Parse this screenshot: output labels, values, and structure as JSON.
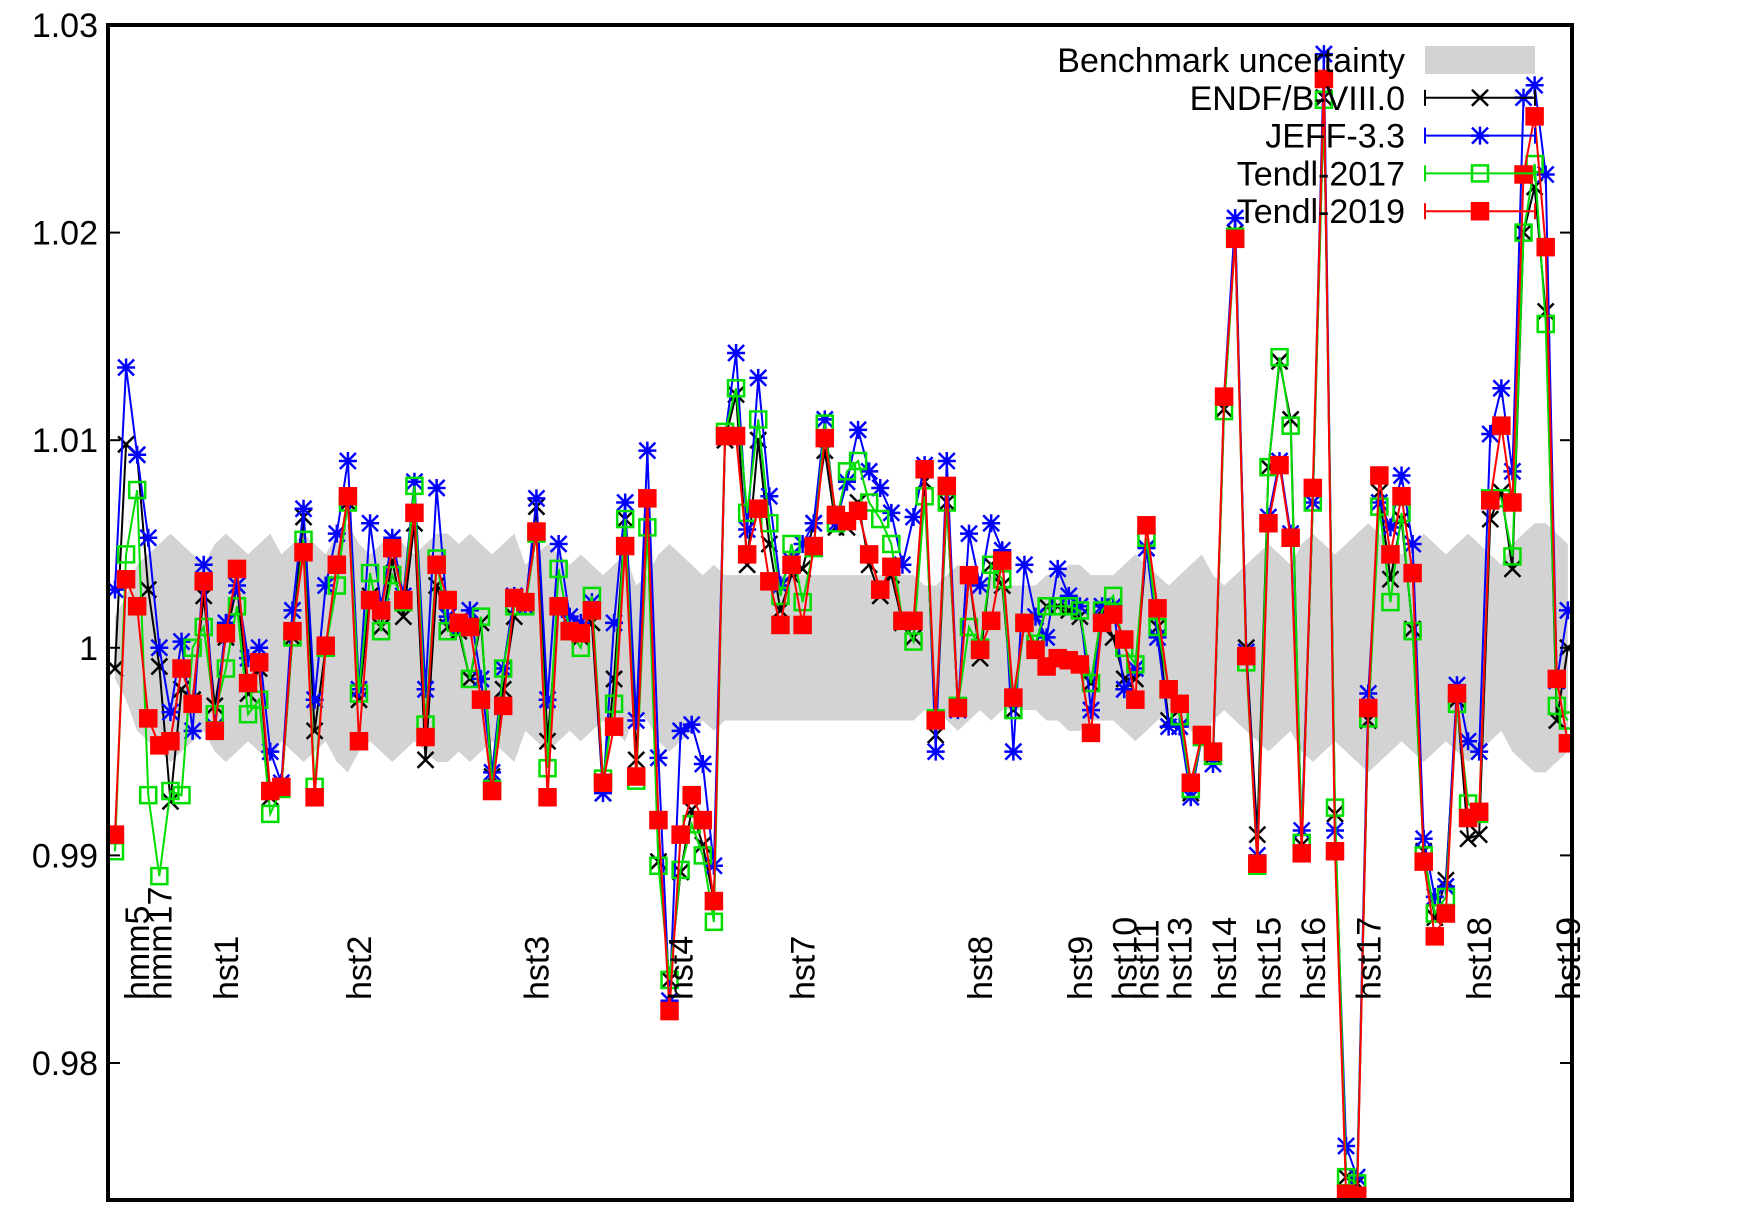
{
  "chart_data": {
    "type": "line",
    "ylim": [
      0.9734,
      1.03
    ],
    "yticks": [
      0.98,
      0.99,
      1,
      1.01,
      1.02,
      1.03
    ],
    "legend": "top-right",
    "categories": [
      null,
      null,
      "hmm5",
      null,
      "hmm17",
      null,
      null,
      null,
      null,
      null,
      "hst1",
      null,
      null,
      null,
      null,
      null,
      null,
      null,
      null,
      null,
      null,
      null,
      "hst2",
      null,
      null,
      null,
      null,
      null,
      null,
      null,
      null,
      null,
      null,
      null,
      null,
      null,
      null,
      null,
      "hst3",
      null,
      null,
      null,
      null,
      null,
      null,
      null,
      null,
      null,
      null,
      null,
      null,
      "hst4",
      null,
      null,
      null,
      null,
      null,
      null,
      null,
      null,
      null,
      null,
      "hst7",
      null,
      null,
      null,
      null,
      null,
      null,
      null,
      null,
      null,
      null,
      null,
      null,
      null,
      null,
      null,
      "hst8",
      null,
      null,
      null,
      null,
      null,
      null,
      null,
      null,
      "hst9",
      null,
      null,
      null,
      "hst10",
      null,
      "hst11",
      null,
      null,
      "hst13",
      null,
      null,
      null,
      "hst14",
      null,
      null,
      null,
      "hst15",
      null,
      null,
      null,
      "hst16",
      null,
      null,
      null,
      null,
      "hst17",
      null,
      null,
      null,
      null,
      null,
      null,
      null,
      null,
      null,
      "hst18",
      null,
      null,
      null,
      null,
      null,
      null,
      null,
      "hst19"
    ],
    "band": {
      "name": "Benchmark uncertainty",
      "color": "#d3d3d3",
      "lower": [
        0.9985,
        0.9975,
        0.996,
        0.9955,
        0.995,
        0.9945,
        0.995,
        0.9955,
        0.996,
        0.995,
        0.9945,
        0.995,
        0.9955,
        0.995,
        0.9945,
        0.9955,
        0.995,
        0.9945,
        0.995,
        0.9955,
        0.9945,
        0.994,
        0.995,
        0.9955,
        0.995,
        0.9945,
        0.995,
        0.9955,
        0.995,
        0.9945,
        0.9945,
        0.995,
        0.9945,
        0.995,
        0.9955,
        0.995,
        0.9945,
        0.996,
        0.9955,
        0.995,
        0.9955,
        0.996,
        0.9955,
        0.996,
        0.9965,
        0.996,
        0.9955,
        0.997,
        0.9965,
        0.9955,
        0.995,
        0.9955,
        0.996,
        0.9965,
        0.996,
        0.9965,
        0.9965,
        0.9965,
        0.9965,
        0.9965,
        0.9965,
        0.9965,
        0.9965,
        0.9965,
        0.9965,
        0.9965,
        0.9965,
        0.9965,
        0.9965,
        0.9965,
        0.9965,
        0.9965,
        0.9965,
        0.997,
        0.997,
        0.9965,
        0.996,
        0.9965,
        0.997,
        0.9965,
        0.997,
        0.997,
        0.997,
        0.997,
        0.9965,
        0.9965,
        0.996,
        0.996,
        0.9965,
        0.9965,
        0.9965,
        0.996,
        0.9955,
        0.996,
        0.9965,
        0.997,
        0.9965,
        0.996,
        0.9955,
        0.9965,
        0.997,
        0.9965,
        0.996,
        0.9955,
        0.995,
        0.9955,
        0.996,
        0.995,
        0.9945,
        0.995,
        0.9955,
        0.995,
        0.9945,
        0.994,
        0.9945,
        0.995,
        0.9955,
        0.995,
        0.9945,
        0.995,
        0.9955,
        0.995,
        0.9945,
        0.995,
        0.9955,
        0.996,
        0.995,
        0.9945,
        0.994,
        0.994,
        0.9945,
        0.995
      ],
      "upper": [
        1.0015,
        1.0025,
        1.004,
        1.0045,
        1.005,
        1.0055,
        1.005,
        1.0045,
        1.004,
        1.005,
        1.0055,
        1.005,
        1.0045,
        1.005,
        1.0055,
        1.0045,
        1.005,
        1.0055,
        1.005,
        1.0045,
        1.0055,
        1.006,
        1.005,
        1.0045,
        1.005,
        1.0055,
        1.005,
        1.0045,
        1.005,
        1.0055,
        1.0055,
        1.005,
        1.0055,
        1.005,
        1.0045,
        1.005,
        1.0055,
        1.004,
        1.0045,
        1.005,
        1.0045,
        1.004,
        1.0045,
        1.004,
        1.0035,
        1.004,
        1.0045,
        1.003,
        1.0035,
        1.0045,
        1.005,
        1.0045,
        1.004,
        1.0035,
        1.004,
        1.0035,
        1.0035,
        1.0035,
        1.0035,
        1.0035,
        1.0035,
        1.0035,
        1.0035,
        1.0035,
        1.0035,
        1.0035,
        1.0035,
        1.0035,
        1.0035,
        1.0035,
        1.0035,
        1.0035,
        1.0035,
        1.003,
        1.003,
        1.0035,
        1.004,
        1.0035,
        1.003,
        1.0035,
        1.003,
        1.003,
        1.003,
        1.003,
        1.0035,
        1.0035,
        1.004,
        1.004,
        1.0035,
        1.0035,
        1.0035,
        1.004,
        1.0045,
        1.004,
        1.0035,
        1.003,
        1.0035,
        1.004,
        1.0045,
        1.0035,
        1.003,
        1.0035,
        1.004,
        1.0045,
        1.005,
        1.0045,
        1.004,
        1.005,
        1.0055,
        1.005,
        1.0045,
        1.005,
        1.0055,
        1.006,
        1.0055,
        1.005,
        1.0045,
        1.005,
        1.0055,
        1.005,
        1.0045,
        1.005,
        1.0055,
        1.005,
        1.0045,
        1.004,
        1.005,
        1.0055,
        1.006,
        1.006,
        1.0055,
        1.005
      ]
    },
    "series": [
      {
        "name": "ENDF/B-VIII.0",
        "color": "#000000",
        "marker": "cross",
        "values": [
          0.999,
          1.0098,
          1.0093,
          1.0028,
          0.9991,
          0.9926,
          0.998,
          0.9975,
          1.0025,
          0.9972,
          1.0005,
          1.003,
          0.9978,
          0.999,
          0.9928,
          0.9932,
          1.0005,
          1.0063,
          0.996,
          1.0,
          1.004,
          1.007,
          0.9975,
          1.0025,
          1.001,
          1.0042,
          1.0015,
          1.006,
          0.9946,
          1.003,
          1.001,
          1.0008,
          0.9985,
          1.0012,
          0.9938,
          0.998,
          1.0015,
          1.002,
          1.0068,
          0.9955,
          1.002,
          1.0008,
          1.0005,
          1.0012,
          0.993,
          0.9985,
          1.0062,
          0.9946,
          1.0072,
          0.9897,
          0.984,
          0.9892,
          0.9922,
          0.9905,
          0.9878,
          1.01,
          1.0122,
          1.004,
          1.01,
          1.005,
          1.0018,
          1.0035,
          1.0038,
          1.006,
          1.0095,
          1.0058,
          1.0058,
          1.007,
          1.004,
          1.0025,
          1.0035,
          1.0012,
          1.0005,
          1.008,
          0.9958,
          1.007,
          0.9972,
          1.0035,
          0.9995,
          1.004,
          1.003,
          0.997,
          1.0012,
          1.0,
          1.002,
          1.002,
          1.0018,
          1.0015,
          0.9983,
          1.0018,
          1.0005,
          0.9985,
          0.9985,
          1.0048,
          1.001,
          0.9965,
          0.9962,
          0.993,
          0.9957,
          0.9948,
          1.0115,
          1.02,
          1.0,
          0.991,
          1.0087,
          1.0138,
          1.011,
          0.9905,
          1.007,
          1.0265,
          0.992,
          0.9745,
          0.9742,
          0.9965,
          1.0075,
          1.0033,
          1.0062,
          1.0009,
          0.9902,
          0.987,
          0.9888,
          0.9975,
          0.9908,
          0.991,
          1.0062,
          1.0075,
          1.0038,
          1.02,
          1.0222,
          1.0162,
          0.9965,
          1.0
        ]
      },
      {
        "name": "JEFF-3.3",
        "color": "#0000ff",
        "marker": "star",
        "values": [
          1.0028,
          1.0135,
          1.0093,
          1.0053,
          1.0,
          0.9969,
          1.0003,
          0.996,
          1.004,
          0.9962,
          1.0012,
          1.003,
          0.9995,
          1.0,
          0.995,
          0.9935,
          1.0018,
          1.0067,
          0.9975,
          1.003,
          1.0055,
          1.009,
          0.998,
          1.006,
          1.002,
          1.0053,
          1.0025,
          1.008,
          0.998,
          1.0077,
          1.0015,
          1.001,
          1.0018,
          0.9985,
          0.994,
          0.999,
          1.0025,
          1.002,
          1.0072,
          0.9975,
          1.005,
          1.0015,
          1.0012,
          1.0022,
          0.993,
          1.0012,
          1.007,
          0.9965,
          1.0095,
          0.9947,
          0.983,
          0.996,
          0.9963,
          0.9944,
          0.9895,
          1.0102,
          1.0142,
          1.0057,
          1.013,
          1.0073,
          1.003,
          1.0042,
          1.005,
          1.006,
          1.011,
          1.006,
          1.008,
          1.0105,
          1.0085,
          1.0077,
          1.0065,
          1.004,
          1.0063,
          1.0088,
          0.995,
          1.009,
          0.997,
          1.0055,
          1.003,
          1.006,
          1.0047,
          0.995,
          1.004,
          1.0015,
          1.0005,
          1.0038,
          1.0025,
          1.002,
          0.997,
          1.002,
          1.002,
          0.998,
          0.999,
          1.0048,
          1.0005,
          0.9962,
          0.9962,
          0.9928,
          0.9957,
          0.9944,
          1.0121,
          1.0207,
          0.9998,
          0.99,
          1.0063,
          1.009,
          1.0055,
          0.9912,
          1.007,
          1.0286,
          0.9912,
          0.976,
          0.9745,
          0.9978,
          1.007,
          1.0058,
          1.0083,
          1.005,
          0.9908,
          0.988,
          0.9885,
          0.9982,
          0.9955,
          0.995,
          1.0103,
          1.0125,
          1.0085,
          1.0265,
          1.0271,
          1.0228,
          0.9984,
          1.0018
        ]
      },
      {
        "name": "Tendl-2017",
        "color": "#00dd00",
        "marker": "open-square",
        "values": [
          0.9902,
          1.0045,
          1.0076,
          0.9929,
          0.989,
          0.9931,
          0.9929,
          1.0,
          1.001,
          0.9968,
          0.999,
          1.002,
          0.9968,
          0.9975,
          0.992,
          0.9932,
          1.0005,
          1.0052,
          0.9933,
          1.0,
          1.003,
          1.007,
          0.9978,
          1.0036,
          1.0008,
          1.0035,
          1.0022,
          1.0078,
          0.9963,
          1.0043,
          1.0008,
          1.001,
          0.9985,
          1.0015,
          0.9932,
          0.999,
          1.002,
          1.002,
          1.0055,
          0.9942,
          1.0038,
          1.0008,
          1.0,
          1.0025,
          0.9937,
          0.9973,
          1.0062,
          0.9936,
          1.0058,
          0.9895,
          0.984,
          0.9893,
          0.9915,
          0.99,
          0.9868,
          1.0104,
          1.0125,
          1.0065,
          1.011,
          1.006,
          1.0025,
          1.005,
          1.0022,
          1.0048,
          1.0108,
          1.006,
          1.0085,
          1.009,
          1.007,
          1.0062,
          1.005,
          1.0013,
          1.0003,
          1.0073,
          0.9966,
          1.007,
          0.9972,
          1.001,
          1.0,
          1.004,
          1.0033,
          0.997,
          1.0012,
          1.0002,
          1.002,
          1.002,
          1.002,
          1.0018,
          0.9983,
          1.0018,
          1.0025,
          1.0,
          0.9992,
          1.0053,
          1.001,
          0.998,
          0.9967,
          0.9932,
          0.9957,
          0.9948,
          1.0114,
          1.0198,
          0.9993,
          0.9895,
          1.0087,
          1.014,
          1.0107,
          0.9906,
          1.007,
          1.0264,
          0.9923,
          0.9745,
          0.9742,
          0.9966,
          1.0068,
          1.0022,
          1.0065,
          1.0008,
          0.99,
          0.9872,
          0.988,
          0.9973,
          0.9925,
          0.992,
          1.0072,
          1.0072,
          1.0044,
          1.02,
          1.0233,
          1.0156,
          0.9972,
          0.9965
        ]
      },
      {
        "name": "Tendl-2019",
        "color": "#ff0000",
        "marker": "filled-square",
        "values": [
          0.991,
          1.0033,
          1.002,
          0.9966,
          0.9953,
          0.9955,
          0.999,
          0.9973,
          1.0032,
          0.996,
          1.0007,
          1.0038,
          0.9983,
          0.9993,
          0.9931,
          0.9933,
          1.0008,
          1.0046,
          0.9928,
          1.0001,
          1.004,
          1.0073,
          0.9955,
          1.0023,
          1.0018,
          1.0048,
          1.0023,
          1.0065,
          0.9957,
          1.004,
          1.0023,
          1.0012,
          1.001,
          0.9975,
          0.9931,
          0.9972,
          1.0024,
          1.0022,
          1.0056,
          0.9928,
          1.002,
          1.0008,
          1.0007,
          1.0018,
          0.9935,
          0.9962,
          1.0049,
          0.9938,
          1.0072,
          0.9917,
          0.9825,
          0.991,
          0.9929,
          0.9917,
          0.9878,
          1.0102,
          1.0102,
          1.0045,
          1.0067,
          1.0032,
          1.0011,
          1.004,
          1.0011,
          1.0049,
          1.0101,
          1.0064,
          1.0061,
          1.0066,
          1.0045,
          1.0028,
          1.0039,
          1.0013,
          1.0013,
          1.0086,
          0.9965,
          1.0078,
          0.9971,
          1.0035,
          0.9999,
          1.0013,
          1.0042,
          0.9976,
          1.0012,
          0.9999,
          0.9991,
          0.9995,
          0.9994,
          0.9992,
          0.9959,
          1.0012,
          1.0016,
          1.0004,
          0.9975,
          1.0059,
          1.0019,
          0.998,
          0.9973,
          0.9935,
          0.9958,
          0.995,
          1.0121,
          1.0197,
          0.9996,
          0.9896,
          1.006,
          1.0088,
          1.0053,
          0.9901,
          1.0077,
          1.0274,
          0.9902,
          0.9737,
          0.9736,
          0.9971,
          1.0083,
          1.0045,
          1.0073,
          1.0036,
          0.9897,
          0.9861,
          0.9872,
          0.9978,
          0.9918,
          0.9921,
          1.0071,
          1.0107,
          1.007,
          1.0228,
          1.0256,
          1.0193,
          0.9985,
          0.9954
        ]
      }
    ]
  }
}
